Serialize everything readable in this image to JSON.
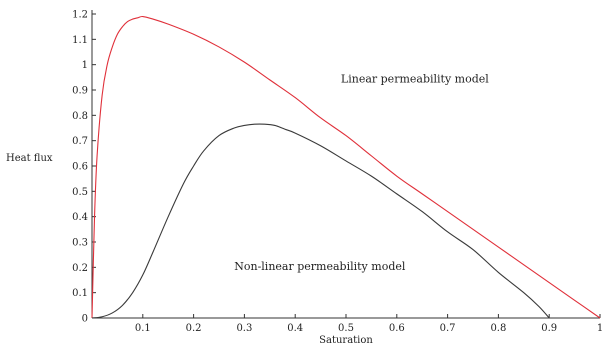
{
  "chart_data": {
    "type": "line",
    "title": "",
    "xlabel": "Saturation",
    "ylabel": "Heat flux",
    "xlim": [
      0,
      1
    ],
    "ylim": [
      0,
      1.2
    ],
    "grid": false,
    "x_ticks": [
      "0.1",
      "0.2",
      "0.3",
      "0.4",
      "0.5",
      "0.6",
      "0.7",
      "0.8",
      "0.9",
      "1"
    ],
    "y_ticks": [
      "0",
      "0.1",
      "0.2",
      "0.3",
      "0.4",
      "0.5",
      "0.6",
      "0.7",
      "0.8",
      "0.9",
      "1",
      "1.1",
      "1.2"
    ],
    "series": [
      {
        "color": "#e0303a",
        "x": [
          0,
          0.005,
          0.01,
          0.02,
          0.03,
          0.04,
          0.05,
          0.06,
          0.07,
          0.08,
          0.09,
          0.1,
          0.12,
          0.15,
          0.2,
          0.25,
          0.3,
          0.35,
          0.4,
          0.45,
          0.5,
          0.55,
          0.6,
          0.65,
          0.7,
          0.75,
          0.8,
          0.85,
          0.9,
          0.95,
          1.0
        ],
        "y": [
          0,
          0.4,
          0.64,
          0.88,
          1.0,
          1.07,
          1.12,
          1.15,
          1.17,
          1.18,
          1.185,
          1.19,
          1.18,
          1.16,
          1.12,
          1.07,
          1.01,
          0.94,
          0.87,
          0.79,
          0.72,
          0.64,
          0.56,
          0.49,
          0.42,
          0.35,
          0.28,
          0.21,
          0.14,
          0.07,
          0
        ]
      },
      {
        "color": "#3a3a3a",
        "x": [
          0,
          0.02,
          0.04,
          0.06,
          0.08,
          0.1,
          0.12,
          0.15,
          0.18,
          0.2,
          0.22,
          0.25,
          0.28,
          0.3,
          0.32,
          0.34,
          0.36,
          0.38,
          0.4,
          0.45,
          0.5,
          0.55,
          0.6,
          0.65,
          0.7,
          0.75,
          0.8,
          0.85,
          0.88,
          0.9
        ],
        "y": [
          0,
          0.005,
          0.02,
          0.05,
          0.1,
          0.17,
          0.26,
          0.4,
          0.53,
          0.6,
          0.66,
          0.72,
          0.75,
          0.76,
          0.765,
          0.765,
          0.76,
          0.745,
          0.73,
          0.68,
          0.62,
          0.56,
          0.49,
          0.42,
          0.34,
          0.27,
          0.18,
          0.1,
          0.045,
          0
        ]
      }
    ],
    "annotations": [
      {
        "text": "Linear permeability model",
        "x": 0.49,
        "y": 0.93
      },
      {
        "text": "Non-linear permeability model",
        "x": 0.28,
        "y": 0.19
      }
    ]
  }
}
